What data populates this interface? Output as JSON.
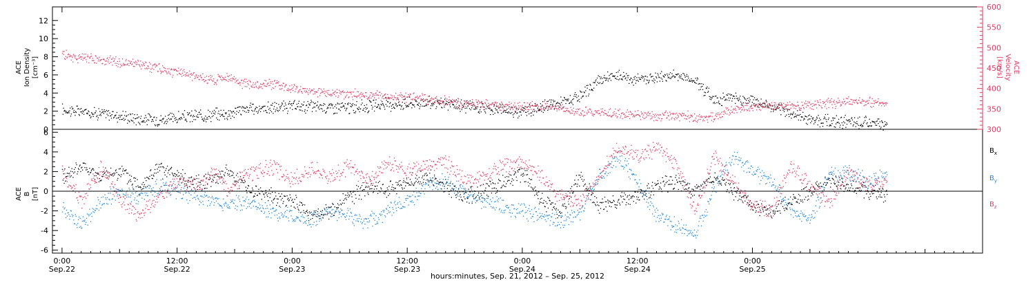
{
  "chart_data": [
    {
      "type": "scatter",
      "title": "",
      "ylabel_lines": [
        "ACE",
        "Ion Density",
        "[cm⁻³]"
      ],
      "ylabel2_lines": [
        "ACE",
        "Velocity",
        "[km/s]"
      ],
      "ylim": [
        0,
        13.5
      ],
      "y_ticks": [
        0,
        2,
        4,
        6,
        8,
        10,
        12
      ],
      "y2lim": [
        300,
        600
      ],
      "y2_ticks": [
        300,
        350,
        400,
        450,
        500,
        550,
        600
      ],
      "series": [
        {
          "color": "#000000",
          "axis": "left",
          "x": [
            0,
            2,
            4,
            6,
            8,
            10,
            12,
            14,
            16,
            17.5,
            18.5,
            20,
            22,
            24,
            26,
            28,
            30,
            32,
            34,
            36,
            38,
            40,
            42,
            44,
            46,
            48,
            50,
            52,
            54,
            56,
            58,
            60,
            62,
            64,
            66,
            68,
            70,
            72,
            74,
            76,
            78,
            80,
            82,
            84,
            86
          ],
          "y": [
            2.2,
            2.0,
            1.8,
            1.5,
            1.2,
            1.1,
            1.3,
            1.5,
            1.7,
            1.8,
            2.2,
            2.3,
            2.4,
            2.5,
            2.6,
            2.5,
            2.4,
            2.6,
            2.8,
            2.9,
            3.0,
            2.8,
            2.6,
            2.4,
            2.2,
            2.0,
            2.5,
            3.0,
            3.5,
            5.5,
            6.0,
            5.5,
            5.8,
            6.0,
            5.5,
            3.3,
            3.5,
            3.2,
            2.5,
            1.8,
            1.2,
            0.9,
            0.8,
            0.7,
            0.6
          ]
        },
        {
          "color": "#e03a62",
          "axis": "right",
          "x": [
            0,
            2,
            4,
            6,
            8,
            10,
            12,
            14,
            16,
            17.5,
            18.5,
            20,
            22,
            24,
            26,
            28,
            30,
            32,
            34,
            36,
            38,
            40,
            42,
            44,
            46,
            48,
            50,
            52,
            54,
            56,
            58,
            60,
            62,
            64,
            66,
            68,
            70,
            72,
            74,
            76,
            78,
            80,
            82,
            84,
            86
          ],
          "y": [
            485,
            475,
            470,
            465,
            460,
            450,
            440,
            430,
            420,
            430,
            415,
            410,
            412,
            400,
            395,
            390,
            388,
            385,
            380,
            378,
            375,
            370,
            365,
            362,
            358,
            355,
            356,
            350,
            345,
            343,
            340,
            337,
            335,
            333,
            332,
            330,
            350,
            355,
            358,
            360,
            362,
            365,
            368,
            368,
            365
          ]
        }
      ]
    },
    {
      "type": "scatter",
      "title": "",
      "ylabel_lines": [
        "ACE",
        "B",
        "[nT]"
      ],
      "ylim": [
        -6.3,
        6.3
      ],
      "y_ticks": [
        -6,
        -4,
        -2,
        0,
        2,
        4,
        6
      ],
      "zero_line": true,
      "series": [
        {
          "name": "Bx",
          "color": "#000000",
          "x": [
            0,
            2,
            4,
            6,
            8,
            10,
            12,
            14,
            16,
            17.5,
            18.5,
            20,
            22,
            24,
            26,
            28,
            30,
            32,
            34,
            36,
            38,
            40,
            42,
            44,
            46,
            48,
            50,
            52,
            54,
            56,
            58,
            60,
            62,
            64,
            66,
            68,
            70,
            72,
            74,
            76,
            78,
            80,
            82,
            84,
            86
          ],
          "y": [
            1.5,
            2.5,
            1.5,
            2.0,
            0.5,
            2.3,
            1.5,
            0.8,
            1.5,
            2.0,
            1.0,
            0.0,
            -0.5,
            -1.0,
            -2.5,
            -2.0,
            -0.5,
            0.5,
            0.3,
            0.8,
            1.5,
            0.5,
            -0.5,
            0.0,
            1.0,
            2.0,
            -1.0,
            -2.0,
            1.5,
            -1.5,
            -1.0,
            -0.5,
            0.5,
            1.0,
            0.0,
            1.5,
            0.0,
            -1.5,
            -2.0,
            -1.0,
            0.0,
            1.0,
            0.5,
            0.0,
            -0.5
          ]
        },
        {
          "name": "By",
          "color": "#1f86d9",
          "x": [
            0,
            2,
            4,
            6,
            8,
            10,
            12,
            14,
            16,
            17.5,
            18.5,
            20,
            22,
            24,
            26,
            28,
            30,
            32,
            34,
            36,
            38,
            40,
            42,
            44,
            46,
            48,
            50,
            52,
            54,
            56,
            58,
            60,
            62,
            64,
            66,
            68,
            70,
            72,
            74,
            76,
            78,
            80,
            82,
            84,
            86
          ],
          "y": [
            -1.5,
            -3.5,
            -1.0,
            0.0,
            -0.5,
            0.5,
            0.0,
            -0.5,
            -1.0,
            -1.5,
            -1.0,
            -1.5,
            -2.0,
            -2.5,
            -3.0,
            -2.0,
            -2.5,
            -3.0,
            -2.0,
            -1.0,
            0.5,
            1.0,
            0.0,
            -1.0,
            -1.5,
            -2.0,
            -2.5,
            -3.0,
            -2.0,
            1.5,
            3.5,
            1.0,
            -2.5,
            -3.5,
            -4.5,
            0.5,
            3.5,
            2.0,
            1.0,
            -2.0,
            -3.0,
            1.5,
            2.0,
            1.0,
            1.5
          ]
        },
        {
          "name": "Bz",
          "color": "#e03a62",
          "x": [
            0,
            2,
            4,
            6,
            8,
            10,
            12,
            14,
            16,
            17.5,
            18.5,
            20,
            22,
            24,
            26,
            28,
            30,
            32,
            34,
            36,
            38,
            40,
            42,
            44,
            46,
            48,
            50,
            52,
            54,
            56,
            58,
            60,
            62,
            64,
            66,
            68,
            70,
            72,
            74,
            76,
            78,
            80,
            82,
            84,
            86
          ],
          "y": [
            2.0,
            -1.0,
            2.5,
            -0.5,
            -2.5,
            -0.5,
            1.0,
            0.5,
            2.0,
            0.0,
            1.5,
            2.0,
            2.5,
            1.0,
            2.5,
            1.5,
            2.5,
            1.0,
            3.0,
            2.0,
            2.8,
            3.0,
            1.0,
            1.5,
            2.5,
            3.0,
            1.5,
            -0.5,
            -1.0,
            1.5,
            4.5,
            3.5,
            4.5,
            3.0,
            -2.0,
            3.5,
            1.0,
            -1.5,
            -2.0,
            2.5,
            0.5,
            -1.0,
            2.0,
            0.5,
            1.0
          ]
        }
      ],
      "legend": [
        "B",
        "B",
        "B"
      ],
      "legend_subscripts": [
        "x",
        "y",
        "z"
      ]
    }
  ],
  "x_axis": {
    "xlim": [
      -1,
      96
    ],
    "tick_hours": [
      0,
      12,
      24,
      36,
      48,
      60,
      72
    ],
    "tick_time_labels": [
      "0:00",
      "12:00",
      "0:00",
      "12:00",
      "0:00",
      "12:00",
      "0:00"
    ],
    "tick_date_labels": [
      "Sep.22",
      "Sep.22",
      "Sep.23",
      "Sep.23",
      "Sep.24",
      "Sep.24",
      "Sep.25"
    ],
    "xlabel": "hours:minutes, Sep. 21, 2012 – Sep. 25, 2012"
  }
}
